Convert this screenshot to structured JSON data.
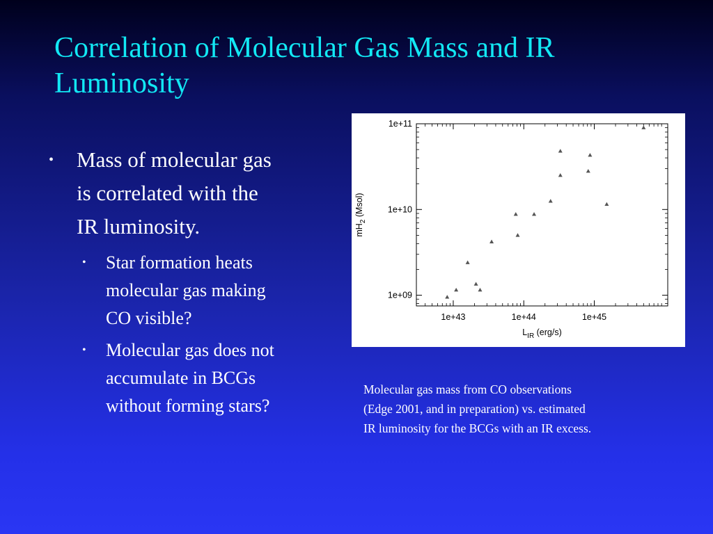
{
  "slide": {
    "title_lines": [
      "Correlation of Molecular Gas Mass and IR",
      "Luminosity"
    ],
    "bullet_main": {
      "lines": [
        "Mass of molecular gas",
        "is correlated with the",
        "IR luminosity."
      ]
    },
    "sub_bullets": [
      {
        "lines": [
          "Star formation heats",
          "molecular gas making",
          "CO visible?"
        ]
      },
      {
        "lines": [
          "Molecular gas does not",
          "accumulate in BCGs",
          "without forming stars?"
        ]
      }
    ],
    "caption_lines": [
      "Molecular gas mass from CO observations",
      "(Edge 2001, and in preparation) vs. estimated",
      "IR luminosity for the BCGs with an IR excess."
    ],
    "colors": {
      "title": "#12e8f4",
      "marker": "#555555"
    },
    "icons": {
      "bullet": "bullet-dot-icon"
    }
  },
  "chart_data": {
    "type": "scatter",
    "xscale": "log",
    "yscale": "log",
    "xlim": [
      3e+42,
      1.1e+46
    ],
    "ylim": [
      750000000.0,
      100000000000.0
    ],
    "xticks": [
      1e+43,
      1e+44,
      1e+45
    ],
    "xtick_labels": [
      "1e+43",
      "1e+44",
      "1e+45"
    ],
    "yticks": [
      1000000000.0,
      10000000000.0,
      100000000000.0
    ],
    "ytick_labels": [
      "1e+09",
      "1e+10",
      "1e+11"
    ],
    "xlabel": "L",
    "xlabel_sub": "IR",
    "xlabel_unit": " (erg/s)",
    "ylabel": "mH",
    "ylabel_sub": "2",
    "ylabel_unit": " (Msol)",
    "marker": "triangle",
    "x": [
      8.2e+42,
      1.1e+43,
      1.6e+43,
      2.1e+43,
      2.4e+43,
      3.5e+43,
      7.7e+43,
      8.2e+43,
      1.4e+44,
      2.4e+44,
      3.3e+44,
      3.3e+44,
      8.2e+44,
      8.7e+44,
      1.5e+45,
      5e+45
    ],
    "y": [
      950000000.0,
      1150000000.0,
      2400000000.0,
      1350000000.0,
      1150000000.0,
      4200000000.0,
      8800000000.0,
      5000000000.0,
      8800000000.0,
      12500000000.0,
      25000000000.0,
      48000000000.0,
      28000000000.0,
      43000000000.0,
      11500000000.0,
      90000000000.0
    ]
  }
}
